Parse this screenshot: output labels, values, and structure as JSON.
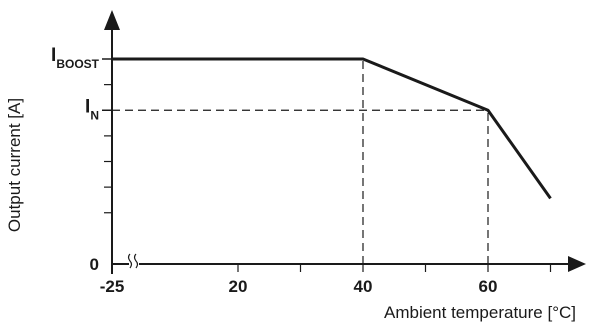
{
  "chart_data": {
    "type": "line",
    "xlabel": "Ambient temperature [°C]",
    "ylabel": "Output current [A]",
    "x_ticks": [
      {
        "value": -25,
        "label": "-25"
      },
      {
        "value": 20,
        "label": "20"
      },
      {
        "value": 40,
        "label": "40"
      },
      {
        "value": 60,
        "label": "60"
      }
    ],
    "y_ticks": [
      {
        "value": 0,
        "label": "0"
      }
    ],
    "y_level_labels": [
      {
        "id": "boost",
        "main": "I",
        "sub": "BOOST",
        "value": 1.0
      },
      {
        "id": "nominal",
        "main": "I",
        "sub": "N",
        "value": 0.75
      }
    ],
    "axis_break_on_x": true,
    "series": [
      {
        "x": [
          -25,
          40,
          60,
          70
        ],
        "y": [
          1.0,
          1.0,
          0.75,
          0.32
        ]
      }
    ],
    "reference_lines": [
      {
        "x": [
          40,
          40
        ],
        "y": [
          0,
          1.0
        ]
      },
      {
        "x": [
          60,
          60
        ],
        "y": [
          0,
          0.75
        ]
      },
      {
        "x": [
          -25,
          60
        ],
        "y": [
          0.75,
          0.75
        ]
      }
    ],
    "xlim": [
      -25,
      75
    ],
    "ylim": [
      0,
      1.2
    ],
    "grid": false
  }
}
